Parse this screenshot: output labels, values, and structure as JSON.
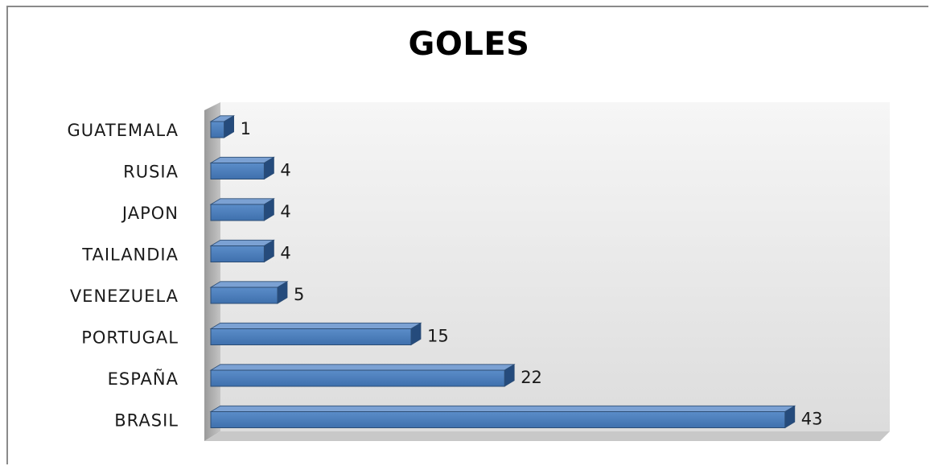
{
  "chart_data": {
    "type": "bar",
    "orientation": "horizontal",
    "style": "3d-clustered",
    "title": "GOLES",
    "categories": [
      "BRASIL",
      "ESPAÑA",
      "PORTUGAL",
      "VENEZUELA",
      "TAILANDIA",
      "JAPON",
      "RUSIA",
      "GUATEMALA"
    ],
    "values": [
      43,
      22,
      15,
      5,
      4,
      4,
      4,
      1
    ],
    "data_labels": [
      "43",
      "22",
      "15",
      "5",
      "4",
      "4",
      "4",
      "1"
    ],
    "xlabel": "",
    "ylabel": "",
    "xlim": [
      0,
      45
    ],
    "grid": false,
    "legend": "none",
    "colors": {
      "bar_front": "#4f81bd",
      "bar_top": "#7ba1d3",
      "bar_side": "#254b7c",
      "bar_edge": "#2c4d75",
      "back_wall": "#ececec",
      "side_wall": "#a6a6a6",
      "floor": "#c8c8c8"
    }
  }
}
